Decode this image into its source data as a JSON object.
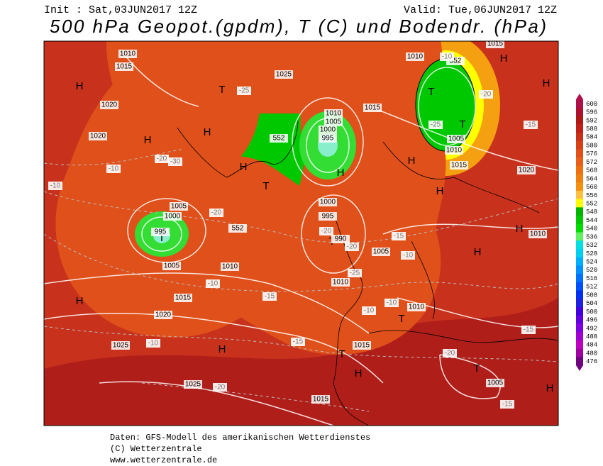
{
  "header": {
    "init": "Init : Sat,03JUN2017 12Z",
    "valid": "Valid: Tue,06JUN2017 12Z",
    "title": "500 hPa Geopot.(gpdm), T (C) und Bodendr. (hPa)"
  },
  "colorbar": {
    "labels": [
      600,
      596,
      592,
      588,
      584,
      580,
      576,
      572,
      568,
      564,
      560,
      556,
      552,
      548,
      544,
      540,
      536,
      532,
      528,
      524,
      520,
      516,
      512,
      508,
      504,
      500,
      496,
      492,
      488,
      484,
      480,
      476
    ]
  },
  "map_labels": {
    "items": [
      "H",
      "H",
      "H",
      "H",
      "H",
      "H",
      "H",
      "H",
      "H",
      "H",
      "H",
      "H",
      "H",
      "H",
      "H",
      "T",
      "T",
      "T",
      "T",
      "T",
      "T",
      "T",
      "T",
      "T",
      "1010",
      "1015",
      "1020",
      "1020",
      "1025",
      "1015",
      "1010",
      "1005",
      "1000",
      "995",
      "1000",
      "995",
      "990",
      "1005",
      "1000",
      "995",
      "1005",
      "1010",
      "1015",
      "1020",
      "1025",
      "1025",
      "1015",
      "1015",
      "1010",
      "1005",
      "1010",
      "1010",
      "1015",
      "1010",
      "1005",
      "1020",
      "1005",
      "1010",
      "1015",
      "552",
      "552",
      "552",
      "-25",
      "-25",
      "-30",
      "-20",
      "-20",
      "-20",
      "-20",
      "-25",
      "-20",
      "-15",
      "-15",
      "-10",
      "-10",
      "-10",
      "-15",
      "-20",
      "-15",
      "-10",
      "-10",
      "-10",
      "-15",
      "-20",
      "-15",
      "-10",
      "-10"
    ]
  },
  "footer": {
    "lines": [
      "Daten: GFS-Modell des amerikanischen Wetterdienstes",
      "(C) Wetterzentrale",
      "www.wetterzentrale.de"
    ]
  }
}
